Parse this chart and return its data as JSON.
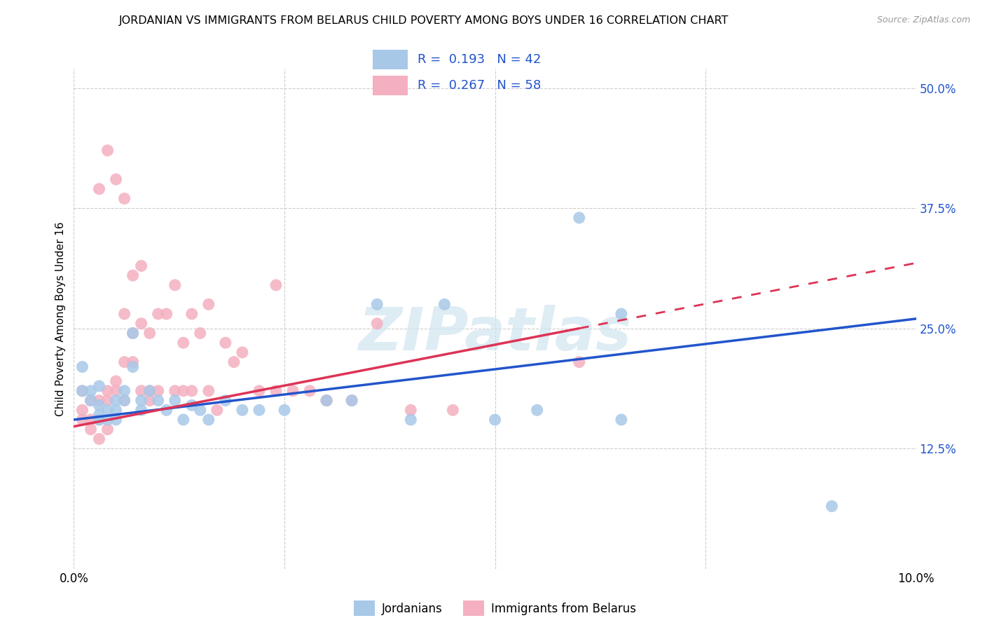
{
  "title": "JORDANIAN VS IMMIGRANTS FROM BELARUS CHILD POVERTY AMONG BOYS UNDER 16 CORRELATION CHART",
  "source": "Source: ZipAtlas.com",
  "ylabel": "Child Poverty Among Boys Under 16",
  "xlim": [
    0.0,
    0.1
  ],
  "ylim": [
    0.0,
    0.52
  ],
  "ytick_positions": [
    0.0,
    0.125,
    0.25,
    0.375,
    0.5
  ],
  "ytick_labels": [
    "",
    "12.5%",
    "25.0%",
    "37.5%",
    "50.0%"
  ],
  "xtick_positions": [
    0.0,
    0.025,
    0.05,
    0.075,
    0.1
  ],
  "xtick_labels": [
    "0.0%",
    "",
    "",
    "",
    "10.0%"
  ],
  "blue_R": "0.193",
  "blue_N": "42",
  "pink_R": "0.267",
  "pink_N": "58",
  "blue_color": "#a8c8e8",
  "pink_color": "#f4b0c0",
  "blue_line_color": "#2255cc",
  "pink_line_color": "#dd3355",
  "legend_label_blue": "Jordanians",
  "legend_label_pink": "Immigrants from Belarus",
  "blue_x": [
    0.001,
    0.001,
    0.002,
    0.002,
    0.003,
    0.003,
    0.003,
    0.004,
    0.004,
    0.005,
    0.005,
    0.006,
    0.007,
    0.007,
    0.008,
    0.009,
    0.01,
    0.011,
    0.012,
    0.013,
    0.014,
    0.015,
    0.016,
    0.018,
    0.02,
    0.022,
    0.025,
    0.03,
    0.033,
    0.036,
    0.04,
    0.044,
    0.05,
    0.055,
    0.06,
    0.065,
    0.065,
    0.09,
    0.003,
    0.005,
    0.006,
    0.008
  ],
  "blue_y": [
    0.185,
    0.21,
    0.185,
    0.175,
    0.16,
    0.17,
    0.19,
    0.155,
    0.165,
    0.155,
    0.165,
    0.185,
    0.21,
    0.245,
    0.165,
    0.185,
    0.175,
    0.165,
    0.175,
    0.155,
    0.17,
    0.165,
    0.155,
    0.175,
    0.165,
    0.165,
    0.165,
    0.175,
    0.175,
    0.275,
    0.155,
    0.275,
    0.155,
    0.165,
    0.365,
    0.265,
    0.155,
    0.065,
    0.155,
    0.175,
    0.175,
    0.175
  ],
  "pink_x": [
    0.001,
    0.001,
    0.001,
    0.002,
    0.002,
    0.002,
    0.003,
    0.003,
    0.003,
    0.004,
    0.004,
    0.004,
    0.005,
    0.005,
    0.006,
    0.006,
    0.006,
    0.007,
    0.007,
    0.008,
    0.008,
    0.009,
    0.009,
    0.01,
    0.011,
    0.012,
    0.013,
    0.014,
    0.015,
    0.016,
    0.017,
    0.018,
    0.02,
    0.022,
    0.024,
    0.026,
    0.028,
    0.03,
    0.033,
    0.04,
    0.007,
    0.009,
    0.012,
    0.014,
    0.016,
    0.019,
    0.024,
    0.03,
    0.036,
    0.045,
    0.003,
    0.004,
    0.005,
    0.006,
    0.008,
    0.01,
    0.013,
    0.06
  ],
  "pink_y": [
    0.155,
    0.165,
    0.185,
    0.145,
    0.155,
    0.175,
    0.135,
    0.155,
    0.175,
    0.175,
    0.145,
    0.185,
    0.185,
    0.195,
    0.175,
    0.215,
    0.265,
    0.215,
    0.245,
    0.185,
    0.255,
    0.175,
    0.245,
    0.185,
    0.265,
    0.295,
    0.235,
    0.265,
    0.245,
    0.275,
    0.165,
    0.235,
    0.225,
    0.185,
    0.295,
    0.185,
    0.185,
    0.175,
    0.175,
    0.165,
    0.305,
    0.185,
    0.185,
    0.185,
    0.185,
    0.215,
    0.185,
    0.175,
    0.255,
    0.165,
    0.395,
    0.435,
    0.405,
    0.385,
    0.315,
    0.265,
    0.185,
    0.215
  ]
}
